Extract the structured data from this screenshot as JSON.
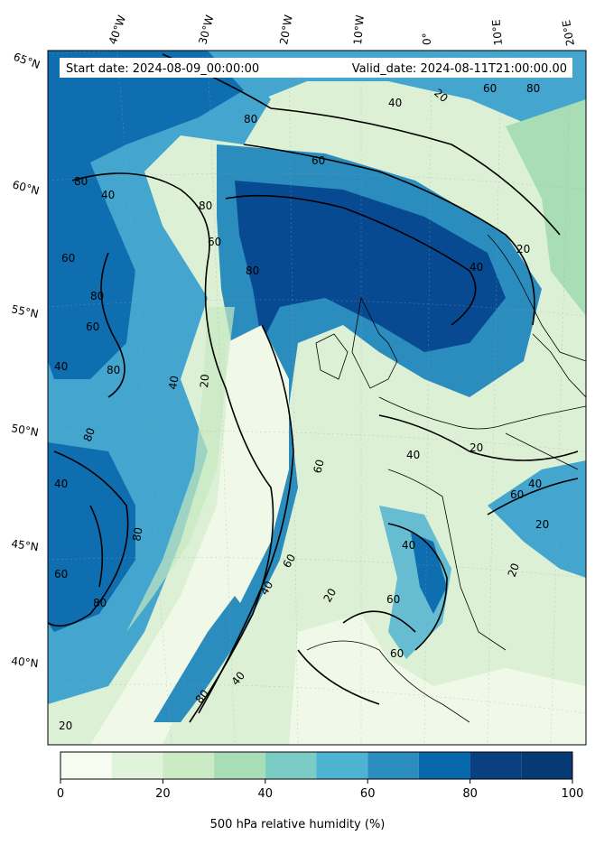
{
  "header": {
    "start_date": "Start date: 2024-08-09_00:00:00",
    "valid_date": "Valid_date: 2024-08-11T21:00:00.00"
  },
  "axes": {
    "longitude_labels": [
      "40°W",
      "30°W",
      "20°W",
      "10°W",
      "0°",
      "10°E",
      "20°E"
    ],
    "latitude_labels": [
      "65°N",
      "60°N",
      "55°N",
      "50°N",
      "45°N",
      "40°N"
    ]
  },
  "contour_labels": [
    "20",
    "40",
    "60",
    "80",
    "80",
    "60",
    "40",
    "80",
    "80",
    "60",
    "40",
    "60",
    "80",
    "80",
    "20",
    "40",
    "60",
    "80",
    "40",
    "20",
    "40",
    "60",
    "80",
    "20",
    "40",
    "60",
    "40",
    "20",
    "60",
    "80",
    "20",
    "40",
    "60",
    "80",
    "60",
    "40",
    "20",
    "20",
    "40",
    "60",
    "80"
  ],
  "colorbar": {
    "label": "500 hPa relative humidity (%)",
    "ticks": [
      "0",
      "20",
      "40",
      "60",
      "80",
      "100"
    ],
    "levels": [
      0,
      10,
      20,
      30,
      40,
      50,
      60,
      70,
      80,
      90,
      100
    ],
    "colors": [
      "#f7fcf0",
      "#e0f3db",
      "#ccebc5",
      "#a8ddb5",
      "#7bccc4",
      "#4eb3d3",
      "#2b8cbe",
      "#0868ac",
      "#084081",
      "#063a74"
    ]
  },
  "colors": {
    "rh_0_10": "#f0f9e8",
    "rh_10_20": "#dbf0d4",
    "rh_20_30": "#c6e8c0",
    "rh_30_40": "#a8ddb5",
    "rh_40_50": "#8ccfc0",
    "rh_50_60": "#66bcd0",
    "rh_60_70": "#44a6cf",
    "rh_70_80": "#2b8cbe",
    "rh_80_90": "#0f6eb0",
    "rh_90_100": "#084a92",
    "contour": "#000000",
    "coastline": "#000000"
  }
}
